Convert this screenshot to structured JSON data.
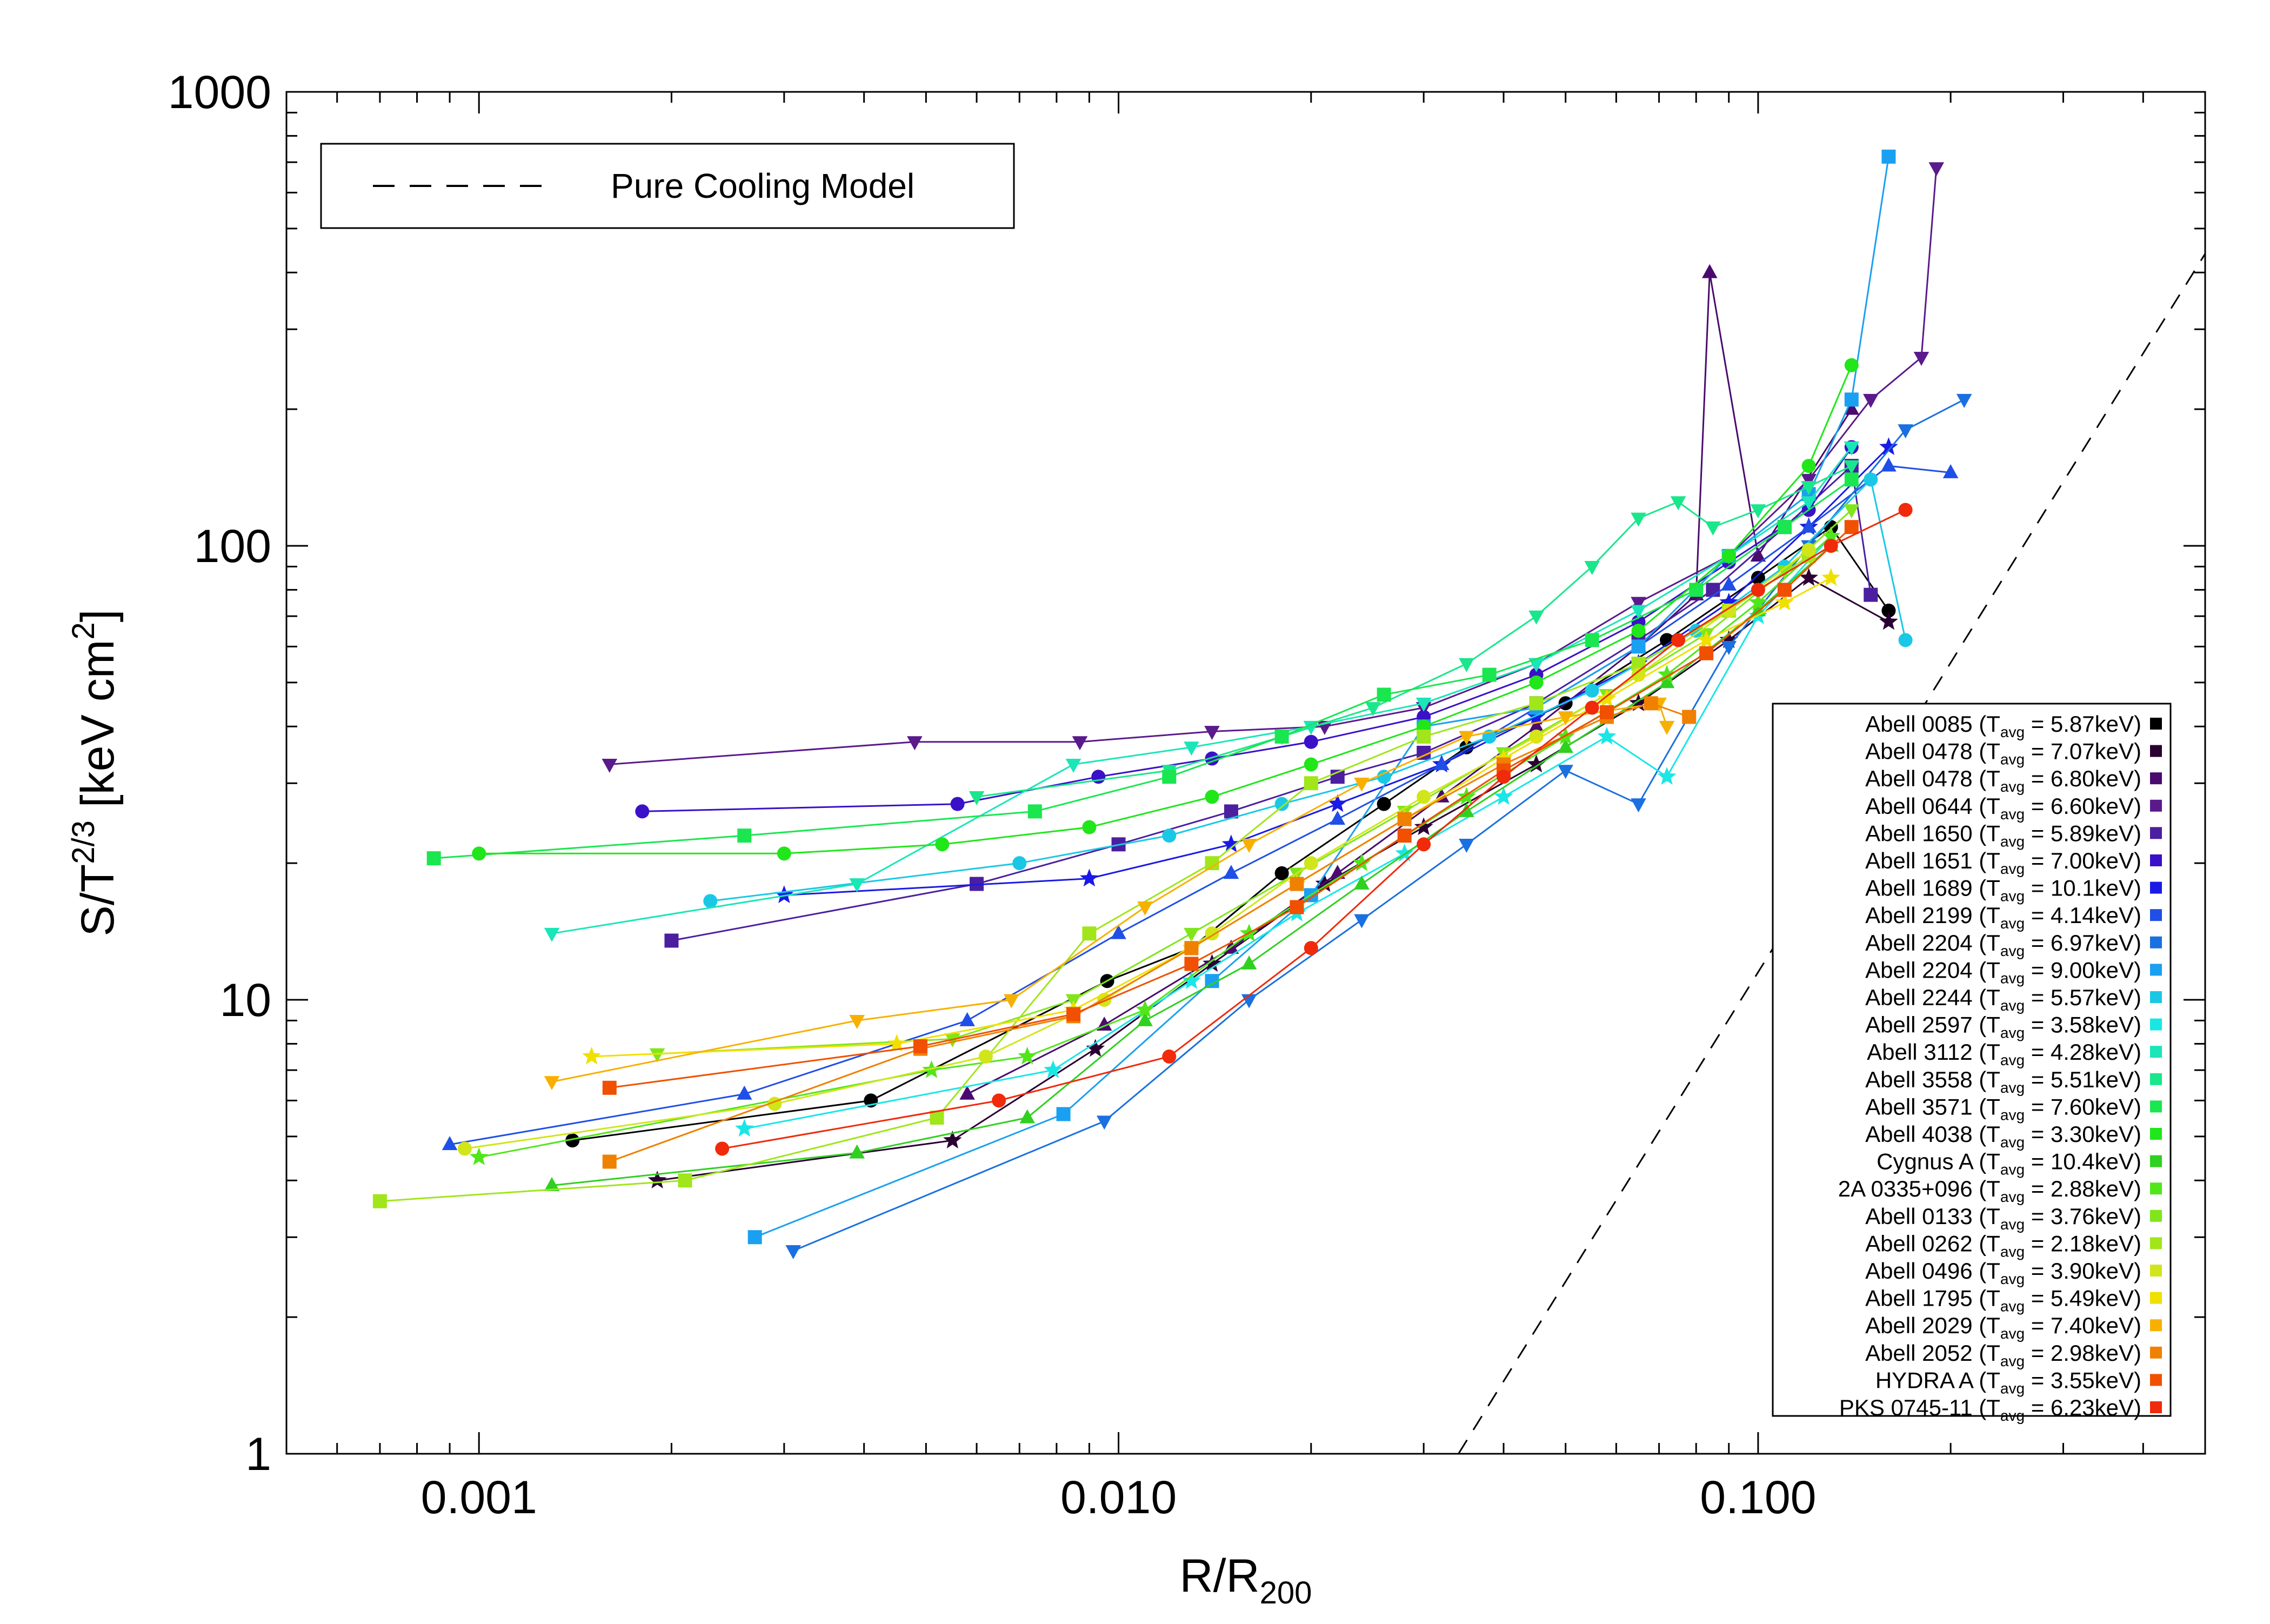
{
  "chart_data": {
    "type": "scatter",
    "xscale": "log",
    "yscale": "log",
    "xlim": [
      0.0005,
      0.5
    ],
    "ylim": [
      1,
      1000
    ],
    "x_ticks": [
      {
        "value": 0.001,
        "label": "0.001"
      },
      {
        "value": 0.01,
        "label": "0.010"
      },
      {
        "value": 0.1,
        "label": "0.100"
      }
    ],
    "y_ticks": [
      {
        "value": 1,
        "label": "1"
      },
      {
        "value": 10,
        "label": "10"
      },
      {
        "value": 100,
        "label": "100"
      },
      {
        "value": 1000,
        "label": "1000"
      }
    ],
    "xlabel": {
      "main": "R/R",
      "sub": "200"
    },
    "ylabel": {
      "main": "S/T",
      "sup": "2/3",
      "tail": " [keV cm",
      "sup2": "2",
      "end": "]"
    },
    "legend_top": {
      "label": "Pure Cooling Model",
      "style": "dashed",
      "position": "top-left"
    },
    "model_line": {
      "x": [
        0.034,
        0.5
      ],
      "y": [
        1,
        440
      ]
    },
    "legend_key_position": "bottom-right",
    "series": [
      {
        "name": "Abell 0085",
        "tavg": "5.87keV",
        "color": "#000000",
        "marker": "circle",
        "x": [
          0.0014,
          0.0041,
          0.0096,
          0.013,
          0.018,
          0.026,
          0.035,
          0.05,
          0.072,
          0.1,
          0.13,
          0.16
        ],
        "y": [
          4.9,
          6.0,
          11.0,
          13.0,
          19.0,
          27.0,
          36.0,
          45.0,
          62.0,
          85.0,
          110.0,
          72.0
        ]
      },
      {
        "name": "Abell 0478",
        "tavg": "7.07keV",
        "color": "#2a0033",
        "marker": "star",
        "x": [
          0.0019,
          0.0055,
          0.0092,
          0.014,
          0.021,
          0.03,
          0.045,
          0.065,
          0.09,
          0.12,
          0.16
        ],
        "y": [
          4.0,
          4.9,
          7.8,
          12.0,
          18.0,
          24.0,
          33.0,
          45.0,
          62.0,
          85.0,
          68.0
        ]
      },
      {
        "name": "Abell 0478",
        "tavg": "6.80keV",
        "color": "#4a0a6e",
        "marker": "triangle-up",
        "x": [
          0.0058,
          0.0095,
          0.015,
          0.022,
          0.032,
          0.045,
          0.065,
          0.08,
          0.084,
          0.1,
          0.14
        ],
        "y": [
          6.2,
          8.8,
          13.0,
          19.0,
          28.0,
          40.0,
          60.0,
          78.0,
          400.0,
          95.0,
          200.0
        ]
      },
      {
        "name": "Abell 0644",
        "tavg": "6.60keV",
        "color": "#5a1a8c",
        "marker": "triangle-down",
        "x": [
          0.0016,
          0.0048,
          0.0087,
          0.014,
          0.021,
          0.03,
          0.045,
          0.065,
          0.09,
          0.12,
          0.15,
          0.18,
          0.19
        ],
        "y": [
          33.0,
          37.0,
          37.0,
          39.0,
          40.0,
          44.0,
          55.0,
          75.0,
          95.0,
          140.0,
          210.0,
          260.0,
          680.0
        ]
      },
      {
        "name": "Abell 1650",
        "tavg": "5.89keV",
        "color": "#4b1fa0",
        "marker": "square",
        "x": [
          0.002,
          0.006,
          0.01,
          0.015,
          0.022,
          0.03,
          0.045,
          0.065,
          0.085,
          0.11,
          0.14,
          0.15
        ],
        "y": [
          13.5,
          18.0,
          22.0,
          26.0,
          31.0,
          35.0,
          45.0,
          62.0,
          80.0,
          110.0,
          150.0,
          78.0
        ]
      },
      {
        "name": "Abell 1651",
        "tavg": "7.00keV",
        "color": "#3a10c8",
        "marker": "circle",
        "x": [
          0.0018,
          0.0056,
          0.0093,
          0.014,
          0.02,
          0.03,
          0.045,
          0.065,
          0.09,
          0.12,
          0.14
        ],
        "y": [
          26.0,
          27.0,
          31.0,
          34.0,
          37.0,
          42.0,
          52.0,
          68.0,
          92.0,
          120.0,
          165.0
        ]
      },
      {
        "name": "Abell 1689",
        "tavg": "10.1keV",
        "color": "#1a1ae6",
        "marker": "star",
        "x": [
          0.003,
          0.009,
          0.015,
          0.022,
          0.032,
          0.045,
          0.065,
          0.09,
          0.12,
          0.16
        ],
        "y": [
          17.0,
          18.5,
          22.0,
          27.0,
          33.0,
          42.0,
          55.0,
          75.0,
          110.0,
          165.0
        ]
      },
      {
        "name": "Abell 2199",
        "tavg": "4.14keV",
        "color": "#1f4fe6",
        "marker": "triangle-up",
        "x": [
          0.0009,
          0.0026,
          0.0058,
          0.01,
          0.015,
          0.022,
          0.032,
          0.045,
          0.065,
          0.09,
          0.12,
          0.16,
          0.2
        ],
        "y": [
          4.8,
          6.2,
          9.0,
          14.0,
          19.0,
          25.0,
          33.0,
          44.0,
          60.0,
          82.0,
          110.0,
          150.0,
          145.0
        ]
      },
      {
        "name": "Abell 2204",
        "tavg": "6.97keV",
        "color": "#1a70e0",
        "marker": "triangle-down",
        "x": [
          0.0031,
          0.0095,
          0.016,
          0.024,
          0.035,
          0.05,
          0.065,
          0.09,
          0.12,
          0.17,
          0.21
        ],
        "y": [
          2.8,
          5.4,
          10.0,
          15.0,
          22.0,
          32.0,
          27.0,
          60.0,
          100.0,
          180.0,
          210.0
        ]
      },
      {
        "name": "Abell 2204",
        "tavg": "9.00keV",
        "color": "#1aa0f0",
        "marker": "square",
        "x": [
          0.0027,
          0.0082,
          0.014,
          0.02,
          0.03,
          0.045,
          0.065,
          0.09,
          0.12,
          0.14,
          0.16
        ],
        "y": [
          3.0,
          5.6,
          11.0,
          17.0,
          40.0,
          44.0,
          60.0,
          95.0,
          130.0,
          210.0,
          720.0
        ]
      },
      {
        "name": "Abell 2244",
        "tavg": "5.57keV",
        "color": "#1ac8e6",
        "marker": "circle",
        "x": [
          0.0023,
          0.007,
          0.012,
          0.018,
          0.026,
          0.038,
          0.055,
          0.08,
          0.11,
          0.15,
          0.17
        ],
        "y": [
          16.5,
          20.0,
          23.0,
          27.0,
          31.0,
          38.0,
          48.0,
          65.0,
          90.0,
          140.0,
          62.0
        ]
      },
      {
        "name": "Abell 2597",
        "tavg": "3.58keV",
        "color": "#1ae6e6",
        "marker": "star",
        "x": [
          0.0026,
          0.0079,
          0.013,
          0.019,
          0.028,
          0.04,
          0.058,
          0.072,
          0.1,
          0.13
        ],
        "y": [
          5.2,
          7.0,
          11.0,
          15.5,
          21.0,
          28.0,
          38.0,
          31.0,
          70.0,
          105.0
        ]
      },
      {
        "name": "Abell 3112",
        "tavg": "4.28keV",
        "color": "#1ae6b8",
        "marker": "triangle-down",
        "x": [
          0.0013,
          0.0039,
          0.0085,
          0.013,
          0.02,
          0.03,
          0.045,
          0.065,
          0.09,
          0.12,
          0.14
        ],
        "y": [
          14.0,
          18.0,
          33.0,
          36.0,
          40.0,
          45.0,
          55.0,
          72.0,
          95.0,
          125.0,
          165.0
        ]
      },
      {
        "name": "Abell 3558",
        "tavg": "5.51keV",
        "color": "#1ae68c",
        "marker": "triangle-down",
        "x": [
          0.006,
          0.012,
          0.018,
          0.025,
          0.035,
          0.045,
          0.055,
          0.065,
          0.075,
          0.085,
          0.1,
          0.12,
          0.14
        ],
        "y": [
          28.0,
          32.0,
          38.0,
          44.0,
          55.0,
          70.0,
          90.0,
          115.0,
          125.0,
          110.0,
          120.0,
          135.0,
          150.0
        ]
      },
      {
        "name": "Abell 3571",
        "tavg": "7.60keV",
        "color": "#1ae650",
        "marker": "square",
        "x": [
          0.00085,
          0.0026,
          0.0074,
          0.012,
          0.018,
          0.026,
          0.038,
          0.055,
          0.08,
          0.11,
          0.14
        ],
        "y": [
          20.5,
          23.0,
          26.0,
          31.0,
          38.0,
          47.0,
          52.0,
          62.0,
          80.0,
          110.0,
          140.0
        ]
      },
      {
        "name": "Abell 4038",
        "tavg": "3.30keV",
        "color": "#20e61a",
        "marker": "circle",
        "x": [
          0.001,
          0.003,
          0.0053,
          0.009,
          0.014,
          0.02,
          0.03,
          0.045,
          0.065,
          0.09,
          0.12,
          0.14
        ],
        "y": [
          21.0,
          21.0,
          22.0,
          24.0,
          28.0,
          33.0,
          40.0,
          50.0,
          65.0,
          95.0,
          150.0,
          250.0
        ]
      },
      {
        "name": "Cygnus A",
        "tavg": "10.4keV",
        "color": "#30d020",
        "marker": "triangle-up",
        "x": [
          0.0013,
          0.0039,
          0.0072,
          0.011,
          0.016,
          0.024,
          0.035,
          0.05,
          0.072,
          0.1,
          0.13
        ],
        "y": [
          3.9,
          4.6,
          5.5,
          9.0,
          12.0,
          18.0,
          26.0,
          36.0,
          50.0,
          72.0,
          100.0
        ]
      },
      {
        "name": "2A 0335+096",
        "tavg": "2.88keV",
        "color": "#50e61a",
        "marker": "star",
        "x": [
          0.001,
          0.0051,
          0.0072,
          0.011,
          0.016,
          0.024,
          0.035,
          0.05,
          0.072,
          0.1,
          0.13
        ],
        "y": [
          4.5,
          7.0,
          7.5,
          9.5,
          14.0,
          20.0,
          28.0,
          38.0,
          52.0,
          75.0,
          105.0
        ]
      },
      {
        "name": "Abell 0133",
        "tavg": "3.76keV",
        "color": "#80e61a",
        "marker": "triangle-down",
        "x": [
          0.0019,
          0.0055,
          0.0085,
          0.013,
          0.019,
          0.028,
          0.04,
          0.058,
          0.083,
          0.11,
          0.14
        ],
        "y": [
          7.6,
          8.2,
          10.0,
          14.0,
          19.0,
          26.0,
          35.0,
          47.0,
          64.0,
          88.0,
          120.0
        ]
      },
      {
        "name": "Abell 0262",
        "tavg": "2.18keV",
        "color": "#a0e61a",
        "marker": "square",
        "x": [
          0.0007,
          0.0021,
          0.0052,
          0.009,
          0.014,
          0.02,
          0.03,
          0.045,
          0.065,
          0.09,
          0.12
        ],
        "y": [
          3.6,
          4.0,
          5.5,
          14.0,
          20.0,
          30.0,
          38.0,
          45.0,
          55.0,
          72.0,
          95.0
        ]
      },
      {
        "name": "Abell 0496",
        "tavg": "3.90keV",
        "color": "#d0e61a",
        "marker": "circle",
        "x": [
          0.00095,
          0.0029,
          0.0062,
          0.0095,
          0.014,
          0.02,
          0.03,
          0.045,
          0.065,
          0.09,
          0.12
        ],
        "y": [
          4.7,
          5.9,
          7.5,
          10.0,
          14.0,
          20.0,
          28.0,
          38.0,
          52.0,
          72.0,
          98.0
        ]
      },
      {
        "name": "Abell 1795",
        "tavg": "5.49keV",
        "color": "#f0e000",
        "marker": "star",
        "x": [
          0.0015,
          0.0045,
          0.0085,
          0.013,
          0.019,
          0.028,
          0.04,
          0.058,
          0.083,
          0.11,
          0.13
        ],
        "y": [
          7.5,
          8.0,
          9.5,
          13.0,
          18.0,
          25.0,
          34.0,
          46.0,
          62.0,
          75.0,
          85.0
        ]
      },
      {
        "name": "Abell 2029",
        "tavg": "7.40keV",
        "color": "#f8b000",
        "marker": "triangle-down",
        "x": [
          0.0013,
          0.0039,
          0.0068,
          0.011,
          0.016,
          0.024,
          0.035,
          0.05,
          0.07,
          0.072
        ],
        "y": [
          6.6,
          9.0,
          10.0,
          16.0,
          22.0,
          30.0,
          38.0,
          42.0,
          45.0,
          40.0
        ]
      },
      {
        "name": "Abell 2052",
        "tavg": "2.98keV",
        "color": "#f08000",
        "marker": "square",
        "x": [
          0.0016,
          0.0049,
          0.0085,
          0.013,
          0.019,
          0.028,
          0.04,
          0.058,
          0.068,
          0.078
        ],
        "y": [
          4.4,
          7.8,
          9.2,
          13.0,
          18.0,
          25.0,
          33.0,
          42.0,
          45.0,
          42.0
        ]
      },
      {
        "name": "HYDRA A",
        "tavg": "3.55keV",
        "color": "#f05000",
        "marker": "square",
        "x": [
          0.0016,
          0.0049,
          0.0085,
          0.013,
          0.019,
          0.028,
          0.04,
          0.058,
          0.083,
          0.11,
          0.14
        ],
        "y": [
          6.4,
          7.9,
          9.3,
          12.0,
          16.0,
          23.0,
          32.0,
          43.0,
          58.0,
          80.0,
          110.0
        ]
      },
      {
        "name": "PKS 0745-11",
        "tavg": "6.23keV",
        "color": "#f02a0a",
        "marker": "circle",
        "x": [
          0.0024,
          0.0065,
          0.012,
          0.02,
          0.03,
          0.04,
          0.055,
          0.075,
          0.1,
          0.13,
          0.17
        ],
        "y": [
          4.7,
          6.0,
          7.5,
          13.0,
          22.0,
          31.0,
          44.0,
          62.0,
          80.0,
          100.0,
          120.0
        ]
      }
    ]
  }
}
